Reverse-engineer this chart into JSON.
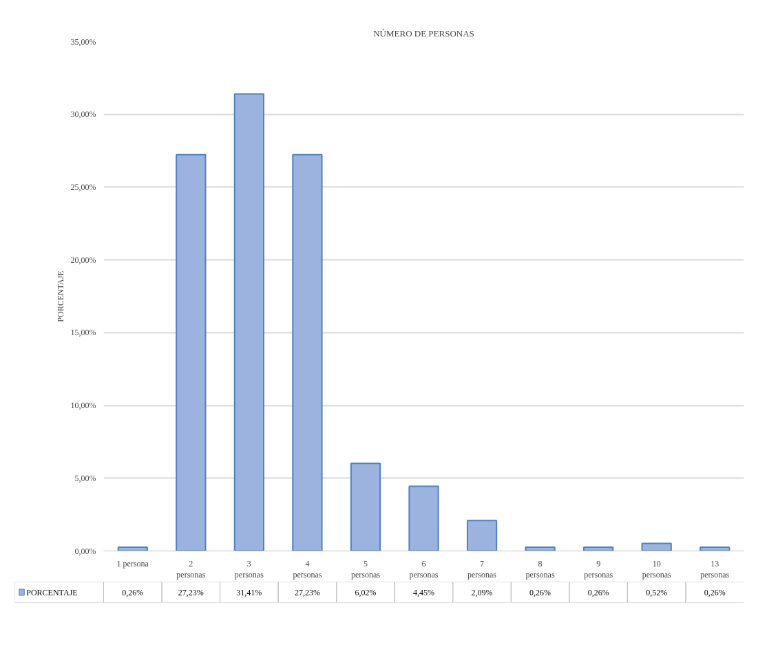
{
  "chart_data": {
    "type": "bar",
    "title": "NÚMERO DE PERSONAS",
    "ylabel": "PORCENTAJE",
    "categories": [
      "1 persona",
      "2 personas",
      "3 personas",
      "4 personas",
      "5 personas",
      "6 personas",
      "7 personas",
      "8 personas",
      "9 personas",
      "10 personas",
      "13 personas"
    ],
    "series": [
      {
        "name": "PORCENTAJE",
        "color": "#9db3df",
        "values": [
          0.26,
          27.23,
          31.41,
          27.23,
          6.02,
          4.45,
          2.09,
          0.26,
          0.26,
          0.52,
          0.26
        ]
      }
    ],
    "ylim": [
      0,
      35
    ],
    "yticks": [
      {
        "value": 0,
        "label": "0,00%"
      },
      {
        "value": 5,
        "label": "5,00%"
      },
      {
        "value": 10,
        "label": "10,00%"
      },
      {
        "value": 15,
        "label": "15,00%"
      },
      {
        "value": 20,
        "label": "20,00%"
      },
      {
        "value": 25,
        "label": "25,00%"
      },
      {
        "value": 30,
        "label": "30,00%"
      },
      {
        "value": 35,
        "label": "35,00%"
      }
    ],
    "value_labels": [
      "0,26%",
      "27,23%",
      "31,41%",
      "27,23%",
      "6,02%",
      "4,45%",
      "2,09%",
      "0,26%",
      "0,26%",
      "0,52%",
      "0,26%"
    ],
    "grid": "y",
    "legend": "bottom"
  }
}
